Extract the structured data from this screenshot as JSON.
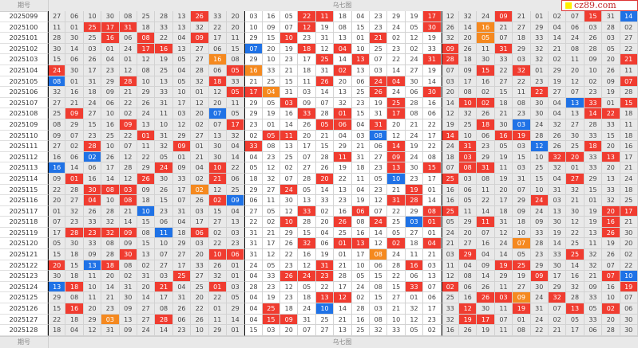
{
  "header": {
    "period_label": "期号",
    "title": "乌七图"
  },
  "footer": {
    "period_label": "期号",
    "title": "乌七图"
  },
  "logo": {
    "text": "cz89.com"
  },
  "colors": {
    "red": "#f03c30",
    "blue": "#1f72e6",
    "orange": "#f5891f"
  },
  "legend_note": "suffix r=red, b=blue, o=orange highlight",
  "rows": [
    {
      "period": "2025099",
      "g1": [
        "27",
        "06",
        "10",
        "30",
        "08",
        "25",
        "28",
        "13",
        "26r",
        "33",
        "20"
      ],
      "g2": [
        "03",
        "16",
        "05",
        "22r",
        "11r",
        "18",
        "04",
        "23",
        "29",
        "19",
        "17r"
      ],
      "g3": [
        "12",
        "32",
        "24",
        "09r",
        "21",
        "01",
        "02",
        "07",
        "15r",
        "31",
        "14b"
      ]
    },
    {
      "period": "2025100",
      "g1": [
        "11",
        "01",
        "25r",
        "17r",
        "31r",
        "18",
        "33",
        "13",
        "32",
        "22",
        "20"
      ],
      "g2": [
        "10",
        "09",
        "07",
        "12r",
        "19",
        "08",
        "15",
        "23",
        "24",
        "05",
        "30r"
      ],
      "g3": [
        "26",
        "14",
        "16o",
        "21",
        "27",
        "29",
        "04",
        "06",
        "03",
        "28",
        "02"
      ]
    },
    {
      "period": "2025101",
      "g1": [
        "28",
        "30",
        "25",
        "16r",
        "06",
        "08r",
        "22",
        "04",
        "09r",
        "17",
        "11"
      ],
      "g2": [
        "29",
        "15",
        "10r",
        "23",
        "31",
        "13",
        "01",
        "21r",
        "02",
        "12",
        "19"
      ],
      "g3": [
        "32",
        "20",
        "05o",
        "07",
        "18",
        "33",
        "14",
        "24",
        "26",
        "03",
        "27"
      ]
    },
    {
      "period": "2025102",
      "g1": [
        "30",
        "14",
        "03",
        "01",
        "24",
        "17r",
        "16r",
        "13",
        "27",
        "06",
        "15"
      ],
      "g2": [
        "07b",
        "20",
        "19",
        "18r",
        "12",
        "04r",
        "10",
        "25",
        "23",
        "02",
        "33"
      ],
      "g3": [
        "09r",
        "26",
        "11",
        "31r",
        "29",
        "32",
        "21",
        "08",
        "28",
        "05",
        "22"
      ]
    },
    {
      "period": "2025103",
      "g1": [
        "15",
        "06",
        "26",
        "04",
        "01",
        "12",
        "19",
        "05",
        "27",
        "16o",
        "08"
      ],
      "g2": [
        "29",
        "10",
        "23",
        "17",
        "25r",
        "14",
        "13r",
        "07",
        "22",
        "24",
        "31r"
      ],
      "g3": [
        "28r",
        "18",
        "30",
        "33",
        "03",
        "32",
        "02",
        "11",
        "09",
        "20",
        "21r"
      ]
    },
    {
      "period": "2025104",
      "g1": [
        "24r",
        "30",
        "17",
        "23",
        "12",
        "08",
        "25",
        "04",
        "28",
        "06",
        "05r"
      ],
      "g2": [
        "16o",
        "33",
        "21",
        "18",
        "31",
        "02r",
        "13",
        "03",
        "14",
        "27",
        "19"
      ],
      "g3": [
        "07",
        "09",
        "15r",
        "22",
        "32r",
        "01",
        "29",
        "20",
        "10",
        "26",
        "11"
      ]
    },
    {
      "period": "2025105",
      "g1": [
        "08b",
        "01",
        "31",
        "29",
        "28r",
        "10",
        "13",
        "05",
        "32",
        "18r",
        "33"
      ],
      "g2": [
        "21",
        "25",
        "15",
        "11",
        "26r",
        "20",
        "06",
        "24r",
        "04r",
        "30",
        "14"
      ],
      "g3": [
        "03",
        "17",
        "16",
        "27",
        "22",
        "23",
        "19",
        "12",
        "02",
        "09",
        "07r"
      ]
    },
    {
      "period": "2025106",
      "g1": [
        "32",
        "16",
        "18",
        "09",
        "21",
        "29",
        "33",
        "10",
        "01",
        "12",
        "05r"
      ],
      "g2": [
        "17r",
        "04o",
        "31",
        "03",
        "14",
        "13",
        "25",
        "26r",
        "24",
        "06",
        "30r"
      ],
      "g3": [
        "20",
        "08",
        "02",
        "15",
        "11",
        "22r",
        "27",
        "07",
        "23",
        "19",
        "28"
      ]
    },
    {
      "period": "2025107",
      "g1": [
        "27",
        "21",
        "24",
        "06",
        "22",
        "26",
        "31",
        "17",
        "12",
        "20",
        "11"
      ],
      "g2": [
        "29",
        "05",
        "03r",
        "09",
        "07",
        "32",
        "23",
        "19",
        "25r",
        "28",
        "16"
      ],
      "g3": [
        "14",
        "10r",
        "02r",
        "18",
        "08",
        "30",
        "04",
        "13b",
        "33r",
        "01",
        "15r"
      ]
    },
    {
      "period": "2025108",
      "g1": [
        "25",
        "09r",
        "27",
        "10",
        "02",
        "24",
        "11",
        "03",
        "20",
        "07b",
        "05"
      ],
      "g2": [
        "29",
        "19",
        "16",
        "33r",
        "28",
        "01r",
        "15",
        "31",
        "17r",
        "08",
        "06"
      ],
      "g3": [
        "12",
        "32",
        "26",
        "21",
        "23",
        "30",
        "04",
        "13",
        "14r",
        "22r",
        "18"
      ]
    },
    {
      "period": "2025109",
      "g1": [
        "08",
        "29",
        "15",
        "16",
        "09r",
        "13",
        "10",
        "12",
        "02",
        "07",
        "17r"
      ],
      "g2": [
        "23",
        "01",
        "14",
        "26",
        "05r",
        "06r",
        "04",
        "31r",
        "20",
        "21",
        "22"
      ],
      "g3": [
        "19",
        "25",
        "18r",
        "30",
        "03b",
        "24",
        "32",
        "27",
        "28",
        "33",
        "11"
      ]
    },
    {
      "period": "2025110",
      "g1": [
        "09",
        "07",
        "23",
        "25",
        "22",
        "01r",
        "31",
        "29",
        "27",
        "13",
        "32"
      ],
      "g2": [
        "02",
        "05r",
        "11r",
        "20",
        "21",
        "04",
        "03",
        "08b",
        "12",
        "24",
        "17"
      ],
      "g3": [
        "14r",
        "10",
        "06",
        "16r",
        "19r",
        "28",
        "26",
        "30",
        "33",
        "15",
        "18"
      ]
    },
    {
      "period": "2025111",
      "g1": [
        "27",
        "02",
        "28r",
        "10",
        "07",
        "11",
        "32",
        "09r",
        "01",
        "30",
        "04"
      ],
      "g2": [
        "33r",
        "08",
        "13",
        "17",
        "15",
        "29",
        "21",
        "06",
        "14r",
        "19",
        "22"
      ],
      "g3": [
        "24",
        "31r",
        "23",
        "05",
        "03",
        "12b",
        "26",
        "25",
        "18r",
        "20",
        "16"
      ]
    },
    {
      "period": "2025112",
      "g1": [
        "16",
        "06",
        "02b",
        "26",
        "12",
        "22",
        "05",
        "01",
        "21",
        "30",
        "14"
      ],
      "g2": [
        "04",
        "23",
        "25",
        "07",
        "28",
        "11r",
        "31",
        "27",
        "09r",
        "24",
        "08"
      ],
      "g3": [
        "18",
        "03r",
        "29",
        "19",
        "15",
        "10",
        "32r",
        "20r",
        "33",
        "13r",
        "17"
      ]
    },
    {
      "period": "2025113",
      "g1": [
        "16b",
        "14",
        "06",
        "17",
        "28",
        "29",
        "24r",
        "09",
        "04",
        "10r",
        "22"
      ],
      "g2": [
        "05",
        "12",
        "02",
        "27",
        "26",
        "19",
        "18",
        "23",
        "13r",
        "30",
        "15r"
      ],
      "g3": [
        "07",
        "08r",
        "31r",
        "11",
        "03",
        "25",
        "32",
        "01",
        "33",
        "20",
        "21"
      ]
    },
    {
      "period": "2025114",
      "g1": [
        "09",
        "01r",
        "16",
        "14",
        "12",
        "26r",
        "30",
        "33",
        "02",
        "21r",
        "06"
      ],
      "g2": [
        "18",
        "32",
        "07",
        "28",
        "20r",
        "22",
        "11",
        "05",
        "10b",
        "23",
        "17"
      ],
      "g3": [
        "25r",
        "03",
        "08",
        "19",
        "31",
        "15",
        "04",
        "27r",
        "29",
        "13",
        "24"
      ]
    },
    {
      "period": "2025115",
      "g1": [
        "22",
        "28",
        "30r",
        "08r",
        "03r",
        "09",
        "26",
        "17",
        "02o",
        "12",
        "25"
      ],
      "g2": [
        "29",
        "27",
        "24r",
        "05",
        "14",
        "13",
        "04",
        "23",
        "21",
        "19r",
        "01"
      ],
      "g3": [
        "16",
        "06",
        "11",
        "20",
        "07",
        "10",
        "31",
        "32",
        "15",
        "33",
        "18"
      ]
    },
    {
      "period": "2025116",
      "g1": [
        "20",
        "27",
        "04r",
        "10",
        "08r",
        "18",
        "15",
        "07",
        "26",
        "02r",
        "09b"
      ],
      "g2": [
        "06",
        "11",
        "30",
        "13",
        "33",
        "23",
        "19",
        "12",
        "31r",
        "28r",
        "14"
      ],
      "g3": [
        "16",
        "05",
        "22",
        "17",
        "29",
        "24r",
        "03",
        "21",
        "01",
        "32",
        "25"
      ]
    },
    {
      "period": "2025117",
      "g1": [
        "01",
        "32",
        "26",
        "28",
        "21",
        "10b",
        "23",
        "31",
        "03",
        "15",
        "04"
      ],
      "g2": [
        "27",
        "05",
        "12",
        "33r",
        "02",
        "16",
        "06r",
        "07",
        "22",
        "29",
        "08r"
      ],
      "g3": [
        "25r",
        "11",
        "14",
        "18",
        "09",
        "24",
        "13",
        "30",
        "19",
        "20r",
        "17r"
      ]
    },
    {
      "period": "2025118",
      "g1": [
        "07",
        "23",
        "33",
        "32",
        "14",
        "15",
        "06",
        "04",
        "17",
        "27",
        "13"
      ],
      "g2": [
        "22",
        "02",
        "10r",
        "28",
        "20",
        "26r",
        "08",
        "24r",
        "25",
        "03b",
        "01r"
      ],
      "g3": [
        "05",
        "29",
        "11r",
        "31",
        "18",
        "09",
        "30",
        "12",
        "19",
        "16r",
        "21"
      ]
    },
    {
      "period": "2025119",
      "g1": [
        "17",
        "28r",
        "23r",
        "32r",
        "09r",
        "08",
        "11b",
        "18",
        "06r",
        "02",
        "03"
      ],
      "g2": [
        "31",
        "21",
        "29",
        "15",
        "04",
        "25",
        "16",
        "14",
        "05",
        "27",
        "01"
      ],
      "g3": [
        "24",
        "20",
        "07",
        "12",
        "10",
        "33",
        "19",
        "22",
        "13",
        "26r",
        "30"
      ]
    },
    {
      "period": "2025120",
      "g1": [
        "05",
        "30",
        "33",
        "08",
        "09",
        "15",
        "10",
        "29",
        "03",
        "22",
        "23"
      ],
      "g2": [
        "31",
        "17",
        "26",
        "32r",
        "06",
        "01r",
        "13r",
        "12",
        "02r",
        "18",
        "04r"
      ],
      "g3": [
        "21",
        "27",
        "16",
        "24",
        "07o",
        "28",
        "14",
        "25",
        "11",
        "19",
        "20"
      ]
    },
    {
      "period": "2025121",
      "g1": [
        "15",
        "18",
        "09",
        "28",
        "30r",
        "13",
        "07",
        "27",
        "20",
        "10r",
        "06r"
      ],
      "g2": [
        "31",
        "12",
        "22",
        "16",
        "19",
        "01",
        "17",
        "08o",
        "24",
        "11",
        "21"
      ],
      "g3": [
        "03",
        "29r",
        "04",
        "14",
        "05",
        "23",
        "33",
        "25r",
        "32",
        "26",
        "02"
      ]
    },
    {
      "period": "2025122",
      "g1": [
        "20r",
        "15",
        "13b",
        "18r",
        "08",
        "02",
        "27",
        "17",
        "33",
        "26",
        "01"
      ],
      "g2": [
        "24",
        "05",
        "23",
        "12",
        "31r",
        "21",
        "10",
        "06",
        "28",
        "16r",
        "03"
      ],
      "g3": [
        "11",
        "04",
        "09",
        "19r",
        "25r",
        "29",
        "30",
        "14",
        "32",
        "07",
        "22"
      ]
    },
    {
      "period": "2025123",
      "g1": [
        "30",
        "18",
        "11",
        "20",
        "02",
        "31",
        "03",
        "25r",
        "27",
        "32",
        "01"
      ],
      "g2": [
        "04",
        "33",
        "26r",
        "24r",
        "23r",
        "28",
        "05",
        "15",
        "22",
        "06",
        "13"
      ],
      "g3": [
        "12",
        "08",
        "14",
        "29",
        "19",
        "09r",
        "17",
        "16",
        "21",
        "07r",
        "10b"
      ]
    },
    {
      "period": "2025124",
      "g1": [
        "13b",
        "18r",
        "10",
        "14",
        "31",
        "20",
        "21r",
        "04",
        "25",
        "01r",
        "03"
      ],
      "g2": [
        "28",
        "23",
        "12",
        "05",
        "22",
        "17",
        "24",
        "08",
        "15",
        "33r",
        "07"
      ],
      "g3": [
        "02r",
        "06",
        "26",
        "11",
        "27",
        "30",
        "29",
        "32",
        "09",
        "16",
        "19r"
      ]
    },
    {
      "period": "2025125",
      "g1": [
        "29",
        "08",
        "11",
        "21",
        "30",
        "14",
        "17",
        "31",
        "20",
        "22",
        "05"
      ],
      "g2": [
        "04",
        "19",
        "23",
        "18",
        "13r",
        "12r",
        "02",
        "15",
        "27",
        "01",
        "06"
      ],
      "g3": [
        "25",
        "16",
        "26r",
        "03r",
        "09o",
        "24",
        "32r",
        "28",
        "33",
        "10",
        "07"
      ]
    },
    {
      "period": "2025126",
      "g1": [
        "15",
        "16r",
        "20",
        "23",
        "09",
        "27",
        "08",
        "26",
        "22",
        "01",
        "29"
      ],
      "g2": [
        "04",
        "25r",
        "18",
        "24",
        "10b",
        "14",
        "28",
        "03",
        "21",
        "32",
        "17"
      ],
      "g3": [
        "33",
        "12r",
        "30",
        "11",
        "19r",
        "31",
        "07",
        "13r",
        "05",
        "02r",
        "06"
      ]
    },
    {
      "period": "2025127",
      "g1": [
        "22",
        "18",
        "29",
        "03o",
        "13",
        "27",
        "28r",
        "06",
        "26",
        "11",
        "14"
      ],
      "g2": [
        "04",
        "15r",
        "09r",
        "31",
        "25",
        "21",
        "16",
        "08",
        "10",
        "12",
        "23"
      ],
      "g3": [
        "32",
        "19r",
        "17r",
        "07",
        "01",
        "24",
        "02",
        "05",
        "33",
        "20",
        "30"
      ]
    },
    {
      "period": "2025128",
      "g1": [
        "18",
        "04",
        "12",
        "31",
        "09",
        "24",
        "14",
        "23",
        "10",
        "29",
        "01"
      ],
      "g2": [
        "15",
        "03",
        "20",
        "07",
        "27",
        "13",
        "25",
        "32",
        "33",
        "05",
        "02"
      ],
      "g3": [
        "16",
        "26",
        "19",
        "11",
        "08",
        "22",
        "21",
        "17",
        "06",
        "28",
        "30"
      ]
    }
  ]
}
